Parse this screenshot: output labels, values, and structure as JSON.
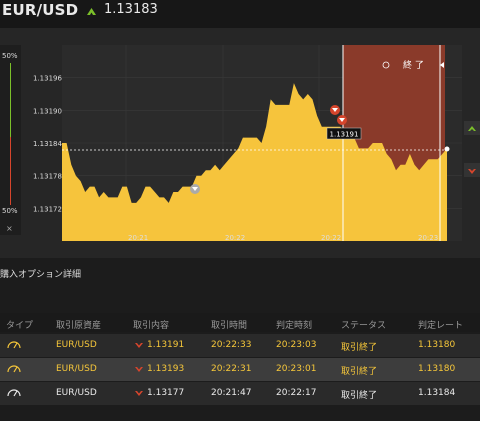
{
  "header": {
    "pair": "EUR/USD",
    "price": "1.13183",
    "up_color": "#7bbf2a"
  },
  "gauge": {
    "top_pct": "50%",
    "bottom_pct": "50%",
    "close": "×"
  },
  "chart": {
    "y_ticks": [
      "1.13196",
      "1.13190",
      "1.13184",
      "1.13178",
      "1.13172"
    ],
    "x_ticks": [
      "20:21",
      "20:22",
      "20:22",
      "20:23"
    ],
    "close_label": "終 了",
    "marker_label": "1.13191",
    "area_color": "#f6c43c",
    "end_zone_color": "#8a3a2a"
  },
  "chart_data": {
    "type": "area",
    "xlabel": "",
    "ylabel": "",
    "ylim": [
      1.13166,
      1.13202
    ],
    "x_ticks": [
      "20:21",
      "20:22",
      "20:22",
      "20:23"
    ],
    "y_ticks": [
      1.13196,
      1.1319,
      1.13184,
      1.13178,
      1.13172
    ],
    "series": [
      {
        "values": [
          1.13184,
          1.13184,
          1.1318,
          1.13178,
          1.13177,
          1.13175,
          1.13176,
          1.13176,
          1.13174,
          1.13175,
          1.13174,
          1.13174,
          1.13174,
          1.13176,
          1.13176,
          1.13173,
          1.13173,
          1.13174,
          1.13176,
          1.13176,
          1.13175,
          1.13174,
          1.13174,
          1.13173,
          1.13175,
          1.13175,
          1.13176,
          1.13176,
          1.13176,
          1.13178,
          1.13178,
          1.13179,
          1.13179,
          1.1318,
          1.13179,
          1.1318,
          1.13181,
          1.13182,
          1.13183,
          1.13185,
          1.13185,
          1.13185,
          1.13185,
          1.13184,
          1.13187,
          1.13192,
          1.13191,
          1.13191,
          1.13191,
          1.13191,
          1.13195,
          1.13193,
          1.13192,
          1.13193,
          1.13192,
          1.13189,
          1.13187,
          1.13187,
          1.13187,
          1.13187,
          1.13187,
          1.13186,
          1.13185,
          1.13185,
          1.13183,
          1.13183,
          1.13183,
          1.13184,
          1.13184,
          1.13184,
          1.13182,
          1.13181,
          1.13179,
          1.1318,
          1.1318,
          1.13182,
          1.1318,
          1.13179,
          1.1318,
          1.13181,
          1.13181,
          1.13181,
          1.13182,
          1.13183
        ]
      }
    ],
    "reference_line": 1.13183,
    "annotations": [
      "1.13191"
    ]
  },
  "details": {
    "title": "購入オプション詳細",
    "columns": [
      "タイプ",
      "取引原資産",
      "取引内容",
      "取引時間",
      "判定時刻",
      "ステータス",
      "判定レート"
    ],
    "rows": [
      {
        "asset": "EUR/USD",
        "content": "1.13191",
        "trade_time": "20:22:33",
        "judge_time": "20:23:03",
        "status": "取引終了",
        "rate": "1.13180"
      },
      {
        "asset": "EUR/USD",
        "content": "1.13193",
        "trade_time": "20:22:31",
        "judge_time": "20:23:01",
        "status": "取引終了",
        "rate": "1.13180"
      },
      {
        "asset": "EUR/USD",
        "content": "1.13177",
        "trade_time": "20:21:47",
        "judge_time": "20:22:17",
        "status": "取引終了",
        "rate": "1.13184"
      }
    ]
  }
}
